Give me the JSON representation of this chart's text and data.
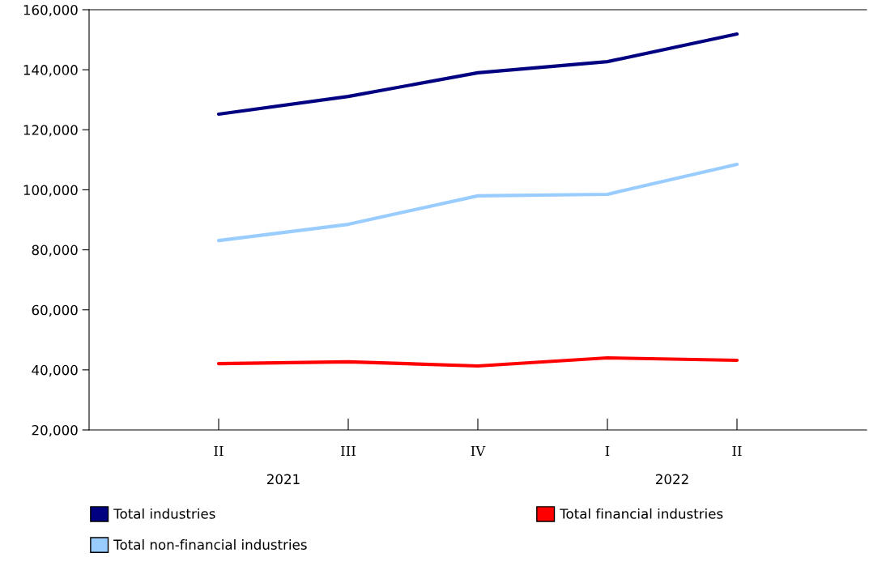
{
  "chart_data": {
    "type": "line",
    "categories": [
      "II",
      "III",
      "IV",
      "I",
      "II"
    ],
    "series": [
      {
        "name": "Total industries",
        "color": "#000080",
        "values": [
          125200,
          131100,
          139000,
          142700,
          151900
        ]
      },
      {
        "name": "Total non-financial industries",
        "color": "#99ccff",
        "values": [
          83100,
          88500,
          98000,
          98500,
          108500
        ]
      },
      {
        "name": "Total financial industries",
        "color": "#ff0000",
        "values": [
          42100,
          42700,
          41300,
          44000,
          43200
        ]
      }
    ],
    "ylim": [
      20000,
      160000
    ],
    "yticks": [
      {
        "value": 20000,
        "label": "20,000"
      },
      {
        "value": 40000,
        "label": "40,000"
      },
      {
        "value": 60000,
        "label": "60,000"
      },
      {
        "value": 80000,
        "label": "80,000"
      },
      {
        "value": 100000,
        "label": "100,000"
      },
      {
        "value": 120000,
        "label": "120,000"
      },
      {
        "value": 140000,
        "label": "140,000"
      },
      {
        "value": 160000,
        "label": "160,000"
      }
    ],
    "annotations": [
      "2021",
      "2022"
    ],
    "grid": false,
    "legend": "bottom",
    "marker": "none",
    "line_style": "solid"
  }
}
